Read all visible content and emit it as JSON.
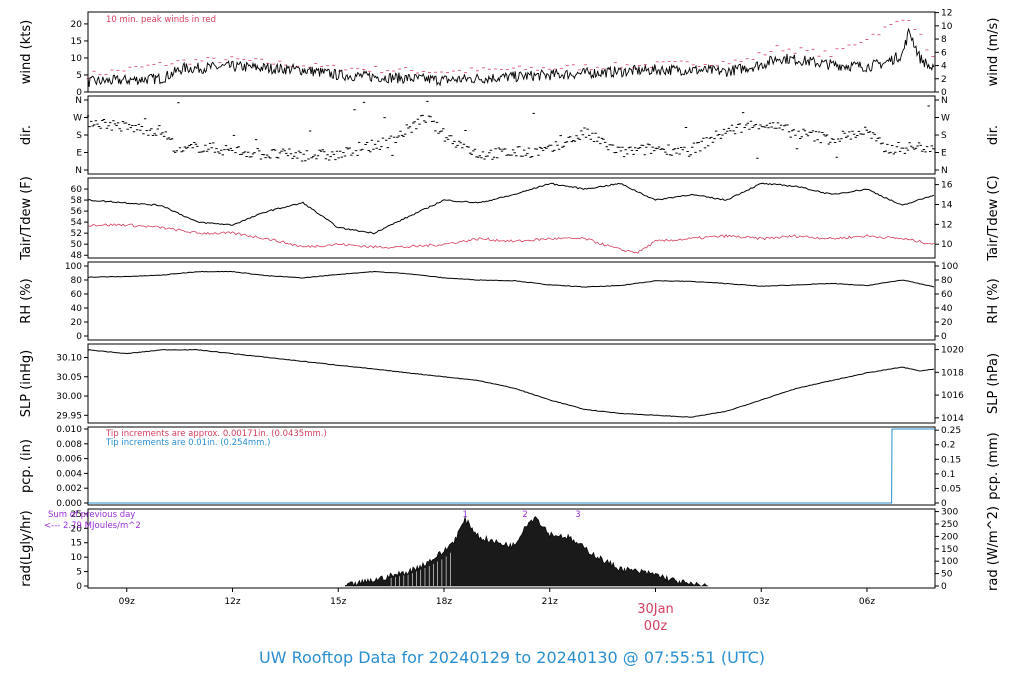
{
  "footer_title": "UW Rooftop Data for 20240129  to  20240130 @ 07:55:51  (UTC)",
  "x_ticks": [
    "09z",
    "12z",
    "15z",
    "18z",
    "21z",
    "03z",
    "06z"
  ],
  "x_ticks_hours": [
    9,
    12,
    15,
    18,
    21,
    27,
    30
  ],
  "day_marker": {
    "date": "30Jan",
    "time": "00z",
    "hour": 24
  },
  "colors": {
    "tair": "#000000",
    "tdew": "#d4405f",
    "peak": "#d4405f",
    "pcp_note1": "#d4405f",
    "pcp_note2": "#2a8fd0",
    "rad_note": "#9b30d8",
    "footer": "#2a8fd0",
    "day": "#d4405f"
  },
  "panels": {
    "wind": {
      "ylabel_left": "wind (kts)",
      "ylabel_right": "wind (m/s)",
      "left_ticks": [
        "0",
        "5",
        "10",
        "15",
        "20"
      ],
      "left_range": [
        0,
        23.5
      ],
      "right_ticks": [
        "0",
        "2",
        "4",
        "6",
        "8",
        "10",
        "12"
      ],
      "note": "10 min. peak winds in red"
    },
    "dir": {
      "ylabel_left": "dir.",
      "ylabel_right": "dir.",
      "ticks": [
        "N",
        "E",
        "S",
        "W",
        "N"
      ]
    },
    "temp": {
      "ylabel_left": "Tair/Tdew (F)",
      "ylabel_right": "Tair/Tdew (C)",
      "left_ticks": [
        "48",
        "50",
        "52",
        "54",
        "56",
        "58",
        "60"
      ],
      "left_range": [
        47.5,
        62
      ],
      "right_ticks": [
        "10",
        "12",
        "14",
        "16"
      ]
    },
    "rh": {
      "ylabel_left": "RH (%)",
      "ylabel_right": "RH (%)",
      "ticks": [
        "0",
        "20",
        "40",
        "60",
        "80",
        "100"
      ],
      "range": [
        0,
        100
      ]
    },
    "slp": {
      "ylabel_left": "SLP (inHg)",
      "ylabel_right": "SLP (hPa)",
      "left_ticks": [
        "29.95",
        "30.00",
        "30.05",
        "30.10"
      ],
      "left_range": [
        29.93,
        30.135
      ],
      "right_ticks": [
        "1014",
        "1016",
        "1018",
        "1020"
      ]
    },
    "pcp": {
      "ylabel_left": "pcp. (in)",
      "ylabel_right": "pcp. (mm)",
      "left_ticks": [
        "0.000",
        "0.002",
        "0.004",
        "0.006",
        "0.008",
        "0.010"
      ],
      "left_range": [
        0,
        0.01
      ],
      "right_ticks": [
        "0",
        "0.05",
        "0.1",
        "0.15",
        "0.2",
        "0.25"
      ],
      "note1": "Tip increments are approx. 0.00171in. (0.0435mm.)",
      "note2": "Tip increments are 0.01in. (0.254mm.)"
    },
    "rad": {
      "ylabel_left": "rad(Lgly/hr)",
      "ylabel_right": "rad (W/m^2)",
      "left_ticks": [
        "0",
        "5",
        "10",
        "15",
        "20",
        "25"
      ],
      "left_range": [
        0,
        26
      ],
      "right_ticks": [
        "0",
        "50",
        "100",
        "150",
        "200",
        "250",
        "300"
      ],
      "note1": "Sum of previous day",
      "note2": "<--- 2.79 MJoules/m^2",
      "markers": [
        "1",
        "2",
        "3"
      ],
      "marker_hours": [
        18.6,
        20.3,
        21.8
      ]
    }
  },
  "chart_data": {
    "type": "line",
    "x_range_hours": [
      7.9,
      31.93
    ],
    "wind_kts": {
      "x": [
        7.9,
        9,
        10,
        10.6,
        11,
        12,
        13,
        14,
        15,
        16,
        17,
        18,
        19,
        20,
        21,
        22,
        23,
        24,
        25,
        26,
        26.5,
        27,
        27.5,
        28,
        29,
        30,
        30.5,
        31,
        31.2,
        31.5,
        31.93
      ],
      "y": [
        3,
        3.5,
        4,
        7,
        7,
        7.5,
        7,
        6.5,
        5,
        4.5,
        4,
        3.5,
        4,
        4.5,
        5,
        5.5,
        6,
        6.5,
        6.5,
        6,
        7,
        8,
        10,
        9.5,
        8,
        7.5,
        8.5,
        11,
        18,
        10,
        6
      ]
    },
    "peak_kts": {
      "x": [
        7.9,
        10.6,
        12,
        15,
        18,
        21,
        24,
        26.5,
        27.5,
        29,
        31.2,
        31.93
      ],
      "y": [
        5,
        9,
        9.5,
        7,
        6,
        7,
        8,
        9,
        13,
        11,
        22,
        9
      ]
    },
    "dir_deg": {
      "x": [
        8,
        9,
        10,
        10.5,
        11,
        13,
        15,
        16.5,
        17.5,
        18,
        19,
        21,
        22,
        23,
        24,
        25,
        26,
        27,
        28,
        29,
        30,
        30.5,
        31.93
      ],
      "y": [
        250,
        220,
        200,
        90,
        120,
        80,
        75,
        150,
        270,
        180,
        80,
        100,
        190,
        90,
        110,
        100,
        200,
        240,
        190,
        160,
        200,
        110,
        120
      ]
    },
    "tair_f": {
      "x": [
        7.9,
        9,
        10,
        11,
        12,
        13,
        14,
        15,
        16,
        17,
        18,
        19,
        20,
        21,
        22,
        23,
        24,
        25,
        26,
        27,
        28,
        29,
        30,
        31,
        31.93
      ],
      "y": [
        58,
        57.5,
        57,
        54,
        53.5,
        56,
        57.5,
        53,
        52,
        55,
        58,
        57.5,
        59,
        61,
        60,
        61,
        58,
        59,
        58,
        61,
        60.5,
        59,
        60,
        57,
        59
      ]
    },
    "tdew_f": {
      "x": [
        7.9,
        9,
        10,
        11,
        12,
        13,
        14,
        15,
        16,
        17,
        18,
        19,
        20,
        21,
        22,
        23,
        23.5,
        24,
        25,
        26,
        27,
        28,
        29,
        30,
        31,
        31.93
      ],
      "y": [
        53.5,
        53.5,
        53,
        52,
        52,
        51,
        49.5,
        50,
        49.5,
        49.5,
        50,
        51,
        50.5,
        51,
        51,
        49,
        48.5,
        50.5,
        51,
        51.5,
        51,
        51.5,
        51,
        51.5,
        51,
        50
      ]
    },
    "rh_pct": {
      "x": [
        7.9,
        9,
        10,
        11,
        12,
        13,
        14,
        15,
        16,
        17,
        18,
        19,
        20,
        21,
        22,
        23,
        24,
        25,
        26,
        27,
        28,
        29,
        30,
        31,
        31.93
      ],
      "y": [
        84,
        85,
        87,
        92,
        92,
        86,
        83,
        88,
        92,
        89,
        83,
        80,
        79,
        73,
        70,
        72,
        79,
        78,
        75,
        71,
        73,
        75,
        72,
        80,
        70
      ]
    },
    "slp_inhg": {
      "x": [
        7.9,
        9,
        10,
        11,
        12,
        13,
        14,
        15,
        16,
        17,
        18,
        19,
        20,
        21,
        22,
        23,
        24,
        25,
        26,
        27,
        28,
        29,
        30,
        31,
        31.5,
        31.93
      ],
      "y": [
        30.12,
        30.11,
        30.12,
        30.12,
        30.11,
        30.1,
        30.09,
        30.08,
        30.07,
        30.06,
        30.05,
        30.04,
        30.02,
        29.99,
        29.965,
        29.955,
        29.95,
        29.945,
        29.96,
        29.99,
        30.02,
        30.04,
        30.06,
        30.075,
        30.065,
        30.07
      ]
    },
    "pcp_in": {
      "x": [
        7.9,
        30.7,
        30.71,
        31.93
      ],
      "y": [
        0,
        0,
        0.01,
        0.01
      ]
    },
    "rad_lgly": {
      "x": [
        15.2,
        16,
        17,
        17.5,
        18,
        18.3,
        18.6,
        19,
        19.5,
        20,
        20.3,
        20.6,
        21,
        21.5,
        22,
        22.5,
        23,
        23.5,
        24,
        24.5,
        25,
        25.5
      ],
      "y": [
        0,
        2,
        5,
        8,
        12,
        16,
        23,
        17,
        15,
        14,
        21,
        24,
        18,
        17,
        13,
        9,
        6,
        5,
        4,
        2,
        0.5,
        0
      ]
    }
  }
}
